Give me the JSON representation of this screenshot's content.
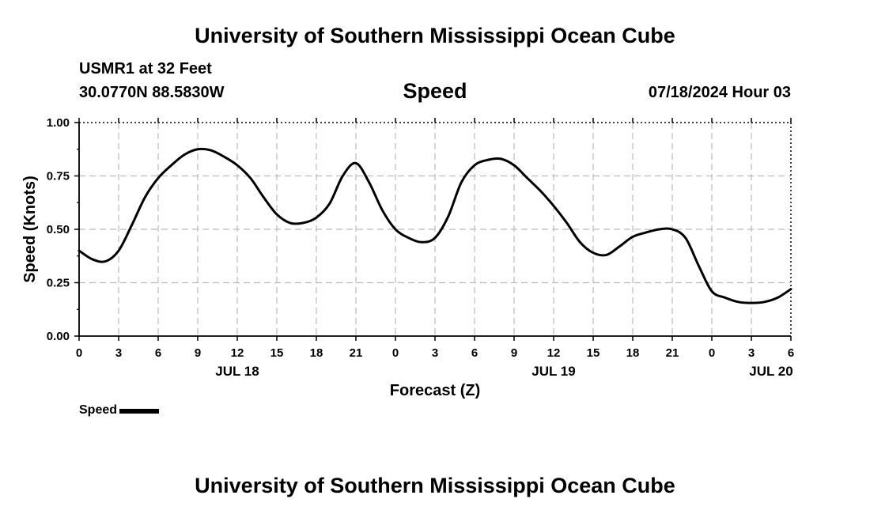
{
  "header": {
    "title": "University of Southern Mississippi Ocean Cube",
    "station": "USMR1 at 32 Feet",
    "coords": "30.0770N  88.5830W",
    "parameter": "Speed",
    "datetime": "07/18/2024 Hour 03"
  },
  "footer": {
    "title": "University of Southern Mississippi Ocean Cube"
  },
  "legend": {
    "label": "Speed"
  },
  "chart_data": {
    "type": "line",
    "title": "Speed",
    "xlabel": "Forecast (Z)",
    "ylabel": "Speed (Knots)",
    "xlim": [
      0,
      54
    ],
    "ylim": [
      0,
      1
    ],
    "grid": true,
    "legend_position": "bottom-left",
    "line_color": "#000000",
    "x_ticks": [
      {
        "x": 0,
        "label": "0"
      },
      {
        "x": 3,
        "label": "3"
      },
      {
        "x": 6,
        "label": "6"
      },
      {
        "x": 9,
        "label": "9"
      },
      {
        "x": 12,
        "label": "12"
      },
      {
        "x": 15,
        "label": "15"
      },
      {
        "x": 18,
        "label": "18"
      },
      {
        "x": 21,
        "label": "21"
      },
      {
        "x": 24,
        "label": "0"
      },
      {
        "x": 27,
        "label": "3"
      },
      {
        "x": 30,
        "label": "6"
      },
      {
        "x": 33,
        "label": "9"
      },
      {
        "x": 36,
        "label": "12"
      },
      {
        "x": 39,
        "label": "15"
      },
      {
        "x": 42,
        "label": "18"
      },
      {
        "x": 45,
        "label": "21"
      },
      {
        "x": 48,
        "label": "0"
      },
      {
        "x": 51,
        "label": "3"
      },
      {
        "x": 54,
        "label": "6"
      }
    ],
    "day_labels": [
      {
        "x": 12,
        "label": "JUL 18"
      },
      {
        "x": 36,
        "label": "JUL 19"
      },
      {
        "x": 52.5,
        "label": "JUL 20"
      }
    ],
    "y_ticks": [
      {
        "y": 0,
        "label": "0.00"
      },
      {
        "y": 0.25,
        "label": "0.25"
      },
      {
        "y": 0.5,
        "label": "0.50"
      },
      {
        "y": 0.75,
        "label": "0.75"
      },
      {
        "y": 1.0,
        "label": "1.00"
      }
    ],
    "series": [
      {
        "name": "Speed",
        "points": [
          [
            0,
            0.4
          ],
          [
            1,
            0.36
          ],
          [
            2,
            0.35
          ],
          [
            3,
            0.4
          ],
          [
            4,
            0.52
          ],
          [
            5,
            0.65
          ],
          [
            6,
            0.74
          ],
          [
            7,
            0.8
          ],
          [
            8,
            0.85
          ],
          [
            9,
            0.875
          ],
          [
            10,
            0.87
          ],
          [
            11,
            0.84
          ],
          [
            12,
            0.8
          ],
          [
            13,
            0.74
          ],
          [
            14,
            0.65
          ],
          [
            15,
            0.57
          ],
          [
            16,
            0.53
          ],
          [
            17,
            0.53
          ],
          [
            18,
            0.555
          ],
          [
            19,
            0.62
          ],
          [
            20,
            0.75
          ],
          [
            21,
            0.81
          ],
          [
            22,
            0.72
          ],
          [
            23,
            0.59
          ],
          [
            24,
            0.5
          ],
          [
            25,
            0.46
          ],
          [
            26,
            0.44
          ],
          [
            27,
            0.46
          ],
          [
            28,
            0.56
          ],
          [
            29,
            0.72
          ],
          [
            30,
            0.8
          ],
          [
            31,
            0.825
          ],
          [
            32,
            0.83
          ],
          [
            33,
            0.8
          ],
          [
            34,
            0.74
          ],
          [
            35,
            0.68
          ],
          [
            36,
            0.61
          ],
          [
            37,
            0.53
          ],
          [
            38,
            0.44
          ],
          [
            39,
            0.39
          ],
          [
            40,
            0.38
          ],
          [
            41,
            0.42
          ],
          [
            42,
            0.465
          ],
          [
            43,
            0.485
          ],
          [
            44,
            0.5
          ],
          [
            45,
            0.5
          ],
          [
            46,
            0.46
          ],
          [
            47,
            0.33
          ],
          [
            48,
            0.21
          ],
          [
            49,
            0.18
          ],
          [
            50,
            0.16
          ],
          [
            51,
            0.155
          ],
          [
            52,
            0.16
          ],
          [
            53,
            0.18
          ],
          [
            54,
            0.22
          ]
        ]
      }
    ]
  }
}
